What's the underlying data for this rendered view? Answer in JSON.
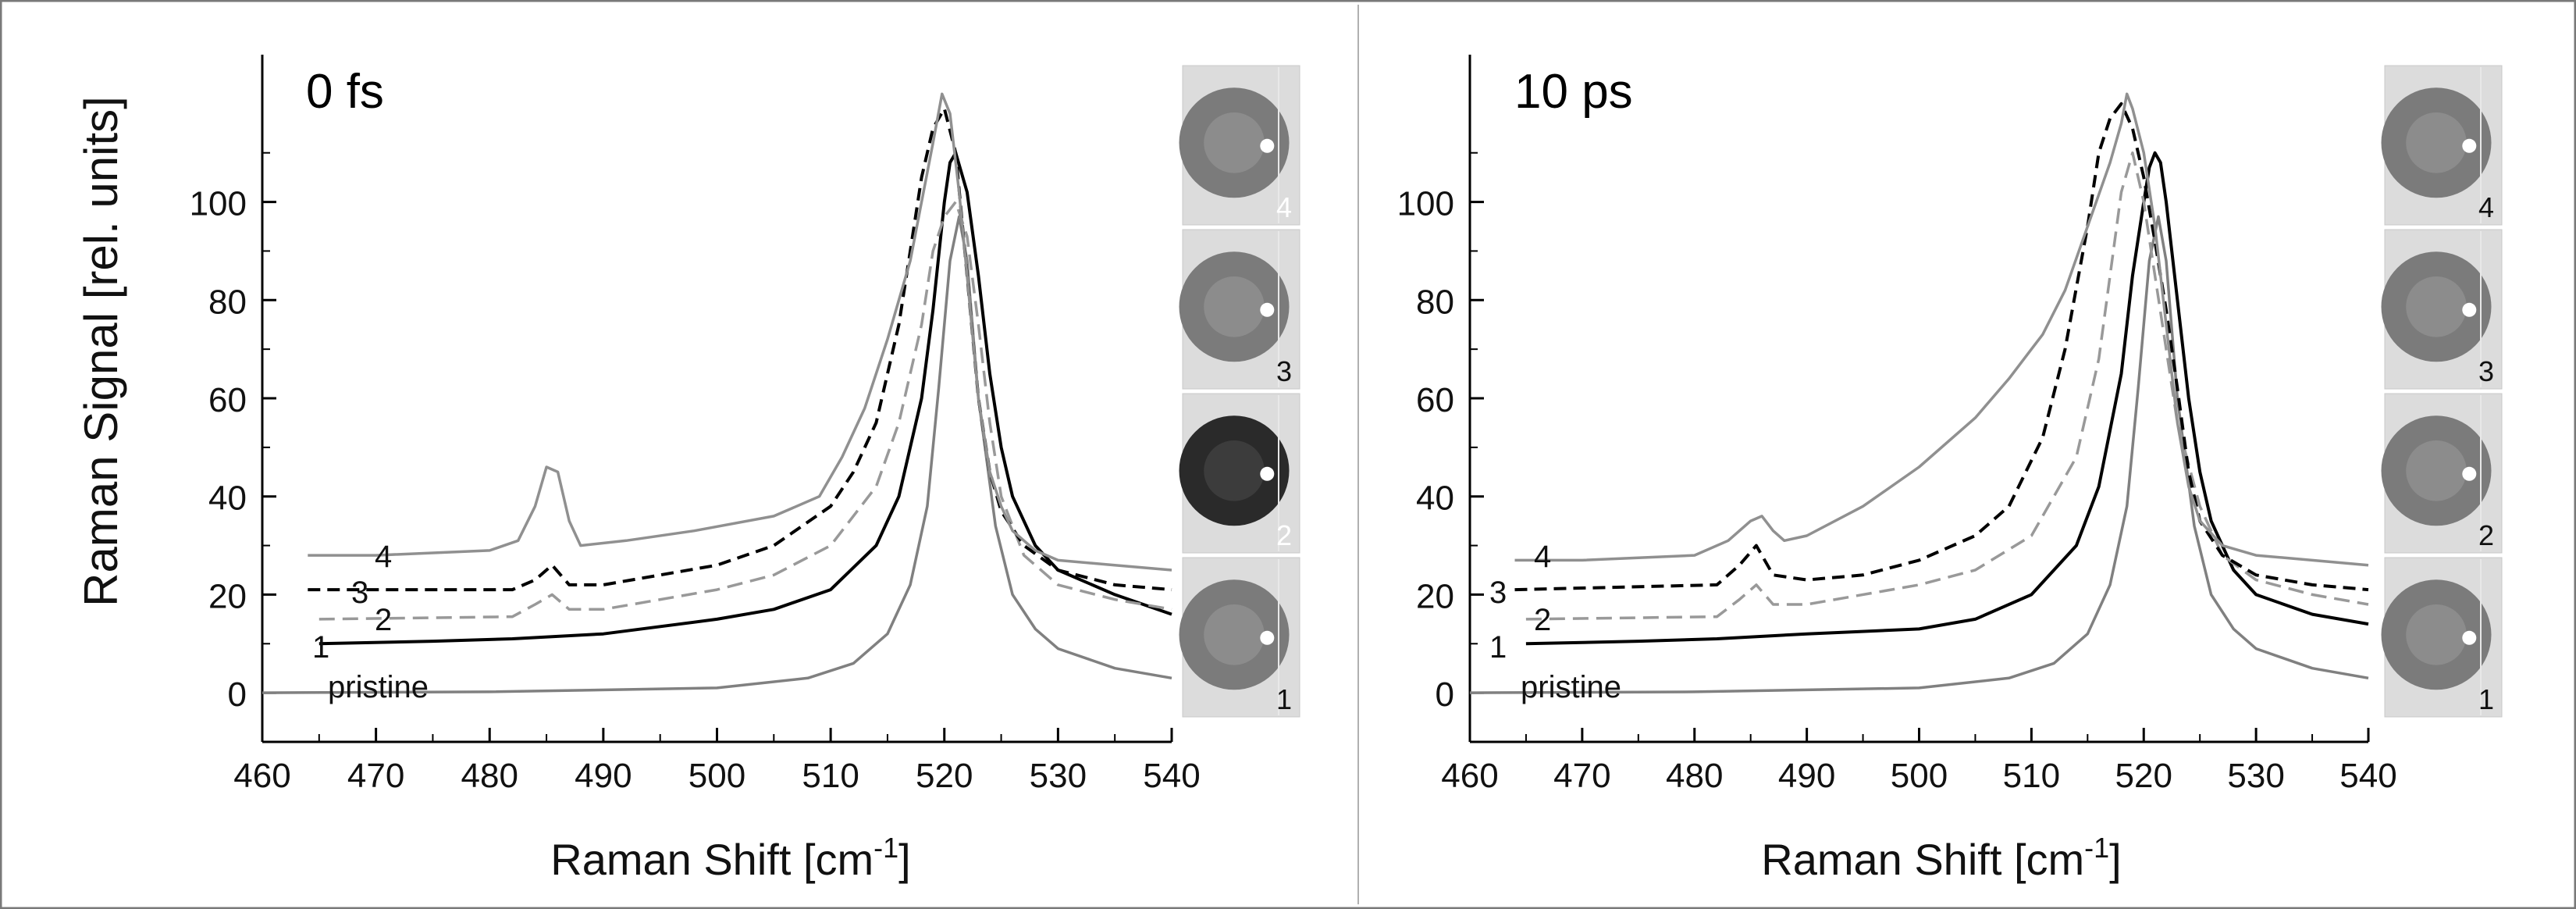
{
  "figure": {
    "ylabel": "Raman Signal [rel. units]"
  },
  "chart_data": [
    {
      "type": "line",
      "title": "0 fs",
      "xlabel": "Raman Shift [cm",
      "xlabel_sup": "-1",
      "xlabel_end": "]",
      "ylabel": "Raman Signal [rel. units]",
      "xlim": [
        460,
        540
      ],
      "ylim": [
        -10,
        130
      ],
      "xticks": [
        "460",
        "470",
        "480",
        "490",
        "500",
        "510",
        "520",
        "530",
        "540"
      ],
      "yticks": [
        "0",
        "20",
        "40",
        "60",
        "80",
        "100"
      ],
      "series": [
        {
          "name": "pristine",
          "label": "pristine",
          "color": "#808080",
          "dash": "solid",
          "x": [
            460,
            480,
            500,
            508,
            512,
            515,
            517,
            518.5,
            519.5,
            520.5,
            521.3,
            522,
            523,
            524.5,
            526,
            528,
            530,
            535,
            540
          ],
          "y": [
            0,
            0.2,
            1,
            3,
            6,
            12,
            22,
            38,
            62,
            88,
            97,
            88,
            60,
            34,
            20,
            13,
            9,
            5,
            3
          ]
        },
        {
          "name": "1",
          "label": "1",
          "color": "#000000",
          "dash": "solid",
          "x": [
            465,
            475,
            482,
            490,
            500,
            505,
            510,
            514,
            516,
            518,
            519,
            520,
            520.5,
            521,
            522,
            523,
            524,
            525,
            526,
            528,
            530,
            535,
            540
          ],
          "y": [
            10,
            10.5,
            11,
            12,
            15,
            17,
            21,
            30,
            40,
            60,
            78,
            100,
            108,
            110,
            102,
            85,
            65,
            50,
            40,
            30,
            25,
            20,
            16
          ]
        },
        {
          "name": "2",
          "label": "2",
          "color": "#999999",
          "dash": "dashed",
          "x": [
            465,
            482,
            484,
            485.5,
            487,
            490,
            500,
            505,
            510,
            514,
            516,
            518,
            519,
            520,
            521,
            522,
            523,
            524,
            525,
            527,
            530,
            535,
            540
          ],
          "y": [
            15,
            15.5,
            18,
            20,
            17,
            17,
            21,
            24,
            30,
            42,
            55,
            75,
            90,
            97,
            100,
            93,
            75,
            55,
            40,
            28,
            22,
            19,
            17
          ]
        },
        {
          "name": "3",
          "label": "3",
          "color": "#000000",
          "dash": "dashed",
          "x": [
            464,
            482,
            484,
            485.5,
            487,
            490,
            500,
            505,
            510,
            512,
            514,
            516,
            517,
            518,
            519,
            520,
            521,
            522,
            523,
            524,
            525,
            527,
            530,
            535,
            540
          ],
          "y": [
            21,
            21,
            23,
            26,
            22,
            22,
            26,
            30,
            38,
            45,
            55,
            75,
            90,
            105,
            115,
            119,
            110,
            85,
            60,
            45,
            37,
            30,
            25,
            22,
            21
          ]
        },
        {
          "name": "4",
          "label": "4",
          "color": "#909090",
          "dash": "solid",
          "x": [
            464,
            470,
            480,
            482.5,
            484,
            485,
            486,
            487,
            488,
            492,
            498,
            505,
            509,
            511,
            513,
            515,
            517,
            518,
            519,
            519.8,
            520.5,
            521.3,
            522,
            523,
            524,
            525,
            526,
            528,
            530,
            535,
            540
          ],
          "y": [
            28,
            28,
            29,
            31,
            38,
            46,
            45,
            35,
            30,
            31,
            33,
            36,
            40,
            48,
            58,
            72,
            88,
            100,
            112,
            122,
            118,
            102,
            85,
            60,
            45,
            38,
            33,
            29,
            27,
            26,
            25
          ]
        }
      ],
      "insets": [
        "4",
        "3",
        "2",
        "1"
      ]
    },
    {
      "type": "line",
      "title": "10 ps",
      "xlabel": "Raman Shift [cm",
      "xlabel_sup": "-1",
      "xlabel_end": "]",
      "ylabel": "",
      "xlim": [
        460,
        540
      ],
      "ylim": [
        -10,
        130
      ],
      "xticks": [
        "460",
        "470",
        "480",
        "490",
        "500",
        "510",
        "520",
        "530",
        "540"
      ],
      "yticks": [
        "0",
        "20",
        "40",
        "60",
        "80",
        "100"
      ],
      "series": [
        {
          "name": "pristine",
          "label": "pristine",
          "color": "#808080",
          "dash": "solid",
          "x": [
            460,
            480,
            500,
            508,
            512,
            515,
            517,
            518.5,
            519.5,
            520.5,
            521.3,
            522,
            523,
            524.5,
            526,
            528,
            530,
            535,
            540
          ],
          "y": [
            0,
            0.2,
            1,
            3,
            6,
            12,
            22,
            38,
            62,
            88,
            97,
            88,
            60,
            34,
            20,
            13,
            9,
            5,
            3
          ]
        },
        {
          "name": "1",
          "label": "1",
          "color": "#000000",
          "dash": "solid",
          "x": [
            465,
            475,
            482,
            490,
            500,
            505,
            510,
            514,
            516,
            518,
            519,
            520,
            520.5,
            521,
            521.5,
            522,
            523,
            524,
            525,
            526,
            528,
            530,
            535,
            540
          ],
          "y": [
            10,
            10.5,
            11,
            12,
            13,
            15,
            20,
            30,
            42,
            65,
            85,
            100,
            107,
            110,
            108,
            100,
            80,
            60,
            45,
            35,
            25,
            20,
            16,
            14
          ]
        },
        {
          "name": "2",
          "label": "2",
          "color": "#999999",
          "dash": "dashed",
          "x": [
            465,
            482,
            484,
            485.5,
            487,
            490,
            500,
            505,
            510,
            514,
            516,
            517,
            518,
            519,
            520,
            521,
            522,
            523,
            525,
            527,
            530,
            535,
            540
          ],
          "y": [
            15,
            15.5,
            19,
            22,
            18,
            18,
            22,
            25,
            32,
            48,
            68,
            85,
            102,
            110,
            100,
            85,
            70,
            55,
            38,
            28,
            23,
            20,
            18
          ]
        },
        {
          "name": "3",
          "label": "3",
          "color": "#000000",
          "dash": "dashed",
          "x": [
            464,
            482,
            484,
            485.5,
            487,
            490,
            495,
            500,
            505,
            508,
            511,
            513,
            515,
            516,
            517,
            518,
            519,
            520,
            521,
            522,
            523,
            524,
            525,
            527,
            530,
            535,
            540
          ],
          "y": [
            21,
            22,
            26,
            30,
            24,
            23,
            24,
            27,
            32,
            38,
            52,
            70,
            95,
            110,
            117,
            120,
            115,
            105,
            92,
            78,
            62,
            45,
            35,
            28,
            24,
            22,
            21
          ]
        },
        {
          "name": "4",
          "label": "4",
          "color": "#909090",
          "dash": "solid",
          "x": [
            464,
            470,
            480,
            483,
            485,
            486,
            487,
            488,
            490,
            495,
            500,
            505,
            508,
            510,
            511,
            513,
            515,
            517,
            518,
            518.5,
            519,
            520,
            521,
            522,
            523,
            524,
            525,
            527,
            530,
            535,
            540
          ],
          "y": [
            27,
            27,
            28,
            31,
            35,
            36,
            33,
            31,
            32,
            38,
            46,
            56,
            64,
            70,
            73,
            82,
            95,
            108,
            116,
            122,
            119,
            110,
            95,
            75,
            55,
            42,
            35,
            30,
            28,
            27,
            26
          ]
        }
      ],
      "insets": [
        "4",
        "3",
        "2",
        "1"
      ]
    }
  ]
}
